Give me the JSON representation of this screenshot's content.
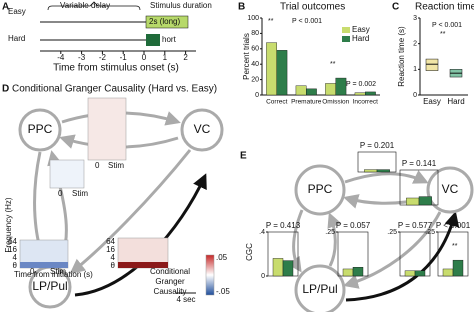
{
  "panel_a": {
    "label": "A",
    "rows": [
      "Easy",
      "Hard"
    ],
    "delay": "Variable delay",
    "duration": "Stimulus duration",
    "long": "2s (long)",
    "short": "hort",
    "xlabel": "Time from stimulus onset (s)",
    "xlim": [
      -5,
      2.5
    ],
    "xticks": [
      -4,
      -3,
      -2,
      -1,
      0,
      1,
      2
    ]
  },
  "panel_d": {
    "label": "D",
    "title": "Conditional Granger Causality (Hard vs. Easy)",
    "nodes": [
      "PPC",
      "VC",
      "LP/Pul"
    ],
    "ylabel": "Frequency (Hz)",
    "xlabel": "Time from initiation (s)",
    "freq_ticks": [
      "64",
      "16",
      "4",
      "θ"
    ],
    "freq_ticks_2": [
      "64",
      "16",
      "4",
      "θ"
    ],
    "time_labels": [
      "0",
      "Stim",
      "0",
      "Stim",
      "0",
      "Stim"
    ],
    "scale": "4 sec",
    "colorbar_title": [
      "Conditional",
      "Granger",
      "Causality"
    ],
    "colorbar_ticks": [
      ".05",
      "-.05"
    ]
  },
  "panel_e": {
    "label": "E",
    "nodes": [
      "PPC",
      "VC",
      "LP/Pul"
    ],
    "ylabel": "CGC"
  },
  "chart_data": [
    {
      "type": "bar",
      "label": "B",
      "title": "Trial outcomes",
      "ylabel": "Percent trials",
      "categories": [
        "Correct",
        "Premature",
        "Omission",
        "Incorrect"
      ],
      "series": [
        {
          "name": "Easy",
          "color": "#c8dc6e",
          "values": [
            68,
            12,
            15,
            3
          ]
        },
        {
          "name": "Hard",
          "color": "#2e7d4a",
          "values": [
            58,
            8,
            22,
            4
          ]
        }
      ],
      "ylim": [
        0,
        100
      ],
      "yticks": [
        0,
        20,
        40,
        60,
        80,
        100
      ],
      "legend": "upper right",
      "annotations": [
        "**",
        "P < 0.001",
        "**",
        "P = 0.002"
      ]
    },
    {
      "type": "box",
      "label": "C",
      "title": "Reaction time",
      "ylabel": "Reaction time (s)",
      "categories": [
        "Easy",
        "Hard"
      ],
      "colors": [
        "#e8d36a",
        "#2e9d6a"
      ],
      "q1": [
        0.95,
        0.7
      ],
      "median": [
        1.2,
        0.85
      ],
      "q3": [
        1.4,
        1.0
      ],
      "ylim": [
        0,
        3
      ],
      "yticks": [
        0,
        1,
        2,
        3
      ],
      "annotations": [
        "P < 0.001",
        "**"
      ]
    },
    {
      "type": "mini",
      "title": "P = 0.201",
      "values": [
        0.03,
        0.03
      ],
      "colors": [
        "#c8dc6e",
        "#2e7d4a"
      ],
      "ylim": [
        0,
        0.25
      ],
      "yticks": [],
      "annotations": []
    },
    {
      "type": "mini",
      "title": "P = 0.141",
      "values": [
        0.05,
        0.06
      ],
      "colors": [
        "#c8dc6e",
        "#2e7d4a"
      ],
      "ylim": [
        0,
        0.25
      ],
      "yticks": [],
      "annotations": []
    },
    {
      "type": "mini",
      "title": "P = 0.413",
      "values": [
        0.16,
        0.14
      ],
      "colors": [
        "#c8dc6e",
        "#2e7d4a"
      ],
      "ylim": [
        0,
        0.4
      ],
      "yticks": [
        0,
        {
          "value": 0.4,
          "label": ".4"
        }
      ],
      "annotations": []
    },
    {
      "type": "mini",
      "title": "P = 0.057",
      "values": [
        0.04,
        0.05
      ],
      "colors": [
        "#c8dc6e",
        "#2e7d4a"
      ],
      "ylim": [
        0,
        0.25
      ],
      "yticks": [
        {
          "value": 0.25,
          "label": ".25"
        }
      ],
      "annotations": []
    },
    {
      "type": "mini",
      "title": "P = 0.577",
      "values": [
        0.03,
        0.03
      ],
      "colors": [
        "#c8dc6e",
        "#2e7d4a"
      ],
      "ylim": [
        0,
        0.25
      ],
      "yticks": [
        {
          "value": 0.25,
          "label": ".25"
        }
      ],
      "annotations": []
    },
    {
      "type": "mini",
      "title": "P < 0.001",
      "values": [
        0.04,
        0.09
      ],
      "colors": [
        "#c8dc6e",
        "#2e7d4a"
      ],
      "ylim": [
        0,
        0.25
      ],
      "yticks": [
        {
          "value": 0.25,
          "label": ".25"
        }
      ],
      "annotations": [
        "**"
      ]
    }
  ]
}
